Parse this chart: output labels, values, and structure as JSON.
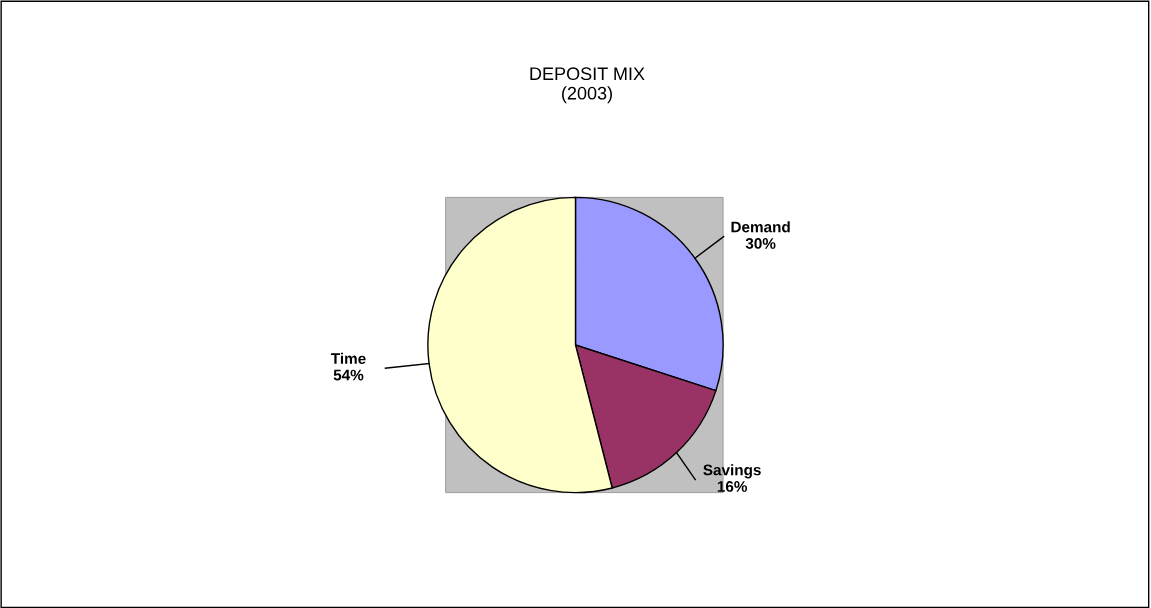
{
  "chart_data": {
    "type": "pie",
    "title": "DEPOSIT MIX\n(2003)",
    "categories": [
      "Demand",
      "Savings",
      "Time"
    ],
    "values": [
      30,
      16,
      54
    ],
    "colors": [
      "#9999ff",
      "#993366",
      "#ffffcc"
    ],
    "value_labels": [
      "30%",
      "16%",
      "54%"
    ]
  }
}
